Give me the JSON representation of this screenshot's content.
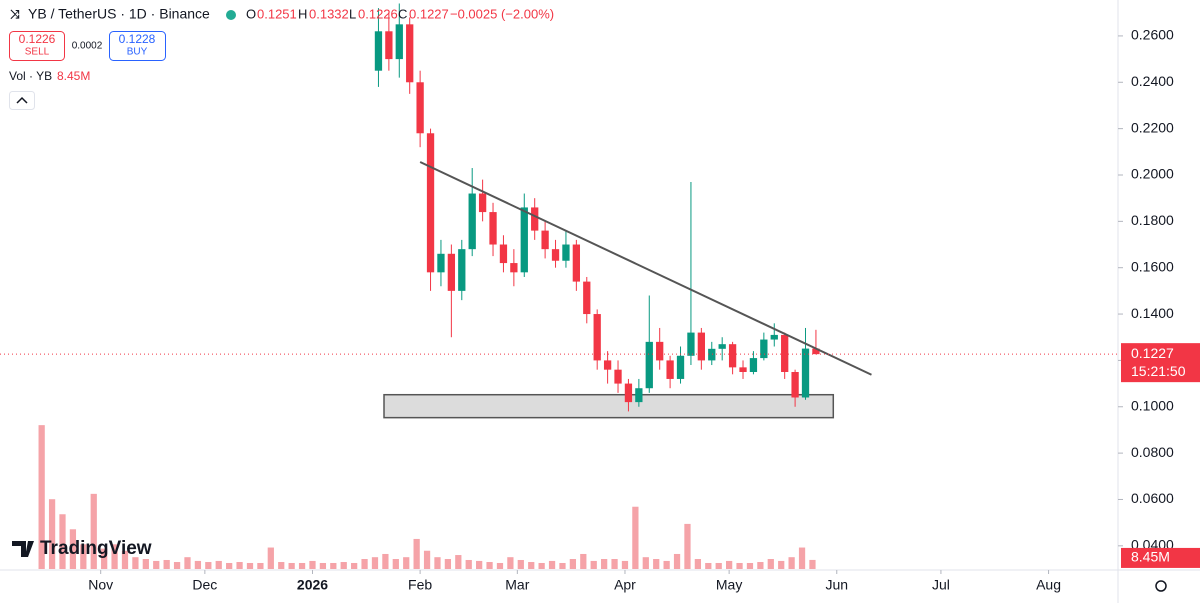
{
  "header": {
    "symbol": "YB / TetherUS · 1D · Binance",
    "o": "O",
    "h": "H",
    "l": "L",
    "c": "C",
    "change": "−0.0025 (−2.00%)",
    "sell": 0.1226,
    "sell_label": "SELL",
    "spread": 0.0002,
    "buy": 0.1228,
    "buy_label": "BUY",
    "vol_label": "Vol · YB",
    "countdown": "15:21:50",
    "logo": "TradingView"
  },
  "chart_data": {
    "type": "candlestick",
    "x": [
      111,
      114,
      117,
      120,
      123,
      126,
      129,
      132,
      135,
      138,
      141,
      144,
      147,
      150,
      153,
      156,
      159,
      162,
      165,
      168,
      171,
      174,
      177,
      180,
      183,
      186,
      189,
      192,
      195,
      198,
      201,
      204,
      207,
      210,
      213,
      216,
      219,
      222,
      225,
      228,
      231,
      234,
      237
    ],
    "open": [
      0.245,
      0.262,
      0.25,
      0.265,
      0.24,
      0.218,
      0.158,
      0.166,
      0.15,
      0.168,
      0.192,
      0.184,
      0.17,
      0.162,
      0.158,
      0.186,
      0.176,
      0.168,
      0.163,
      0.17,
      0.154,
      0.14,
      0.12,
      0.116,
      0.11,
      0.102,
      0.108,
      0.128,
      0.12,
      0.112,
      0.122,
      0.132,
      0.12,
      0.125,
      0.127,
      0.117,
      0.115,
      0.121,
      0.129,
      0.131,
      0.115,
      0.104,
      0.1251
    ],
    "high": [
      0.272,
      0.27,
      0.274,
      0.268,
      0.245,
      0.22,
      0.172,
      0.17,
      0.172,
      0.203,
      0.198,
      0.188,
      0.174,
      0.168,
      0.192,
      0.19,
      0.18,
      0.172,
      0.176,
      0.172,
      0.156,
      0.142,
      0.124,
      0.12,
      0.112,
      0.112,
      0.148,
      0.134,
      0.122,
      0.126,
      0.197,
      0.134,
      0.128,
      0.13,
      0.128,
      0.12,
      0.124,
      0.132,
      0.136,
      0.132,
      0.116,
      0.134,
      0.1332
    ],
    "low": [
      0.238,
      0.245,
      0.242,
      0.235,
      0.212,
      0.15,
      0.152,
      0.13,
      0.146,
      0.165,
      0.18,
      0.165,
      0.158,
      0.152,
      0.156,
      0.172,
      0.164,
      0.16,
      0.16,
      0.15,
      0.136,
      0.116,
      0.11,
      0.106,
      0.098,
      0.1,
      0.106,
      0.116,
      0.108,
      0.11,
      0.118,
      0.116,
      0.118,
      0.12,
      0.114,
      0.112,
      0.114,
      0.12,
      0.126,
      0.112,
      0.1,
      0.103,
      0.1226
    ],
    "close": [
      0.262,
      0.25,
      0.265,
      0.24,
      0.218,
      0.158,
      0.166,
      0.15,
      0.168,
      0.192,
      0.184,
      0.17,
      0.162,
      0.158,
      0.186,
      0.176,
      0.168,
      0.163,
      0.17,
      0.154,
      0.14,
      0.12,
      0.116,
      0.11,
      0.102,
      0.108,
      0.128,
      0.12,
      0.112,
      0.122,
      0.132,
      0.12,
      0.125,
      0.127,
      0.117,
      0.115,
      0.121,
      0.129,
      0.131,
      0.115,
      0.104,
      0.1251,
      0.1227
    ],
    "up_color": "#089981",
    "down_color": "#f23645",
    "xlim": [
      2,
      324
    ],
    "xticks": [
      {
        "value": 31,
        "label": "Nov"
      },
      {
        "value": 61,
        "label": "Dec"
      },
      {
        "value": 92,
        "label": "2026"
      },
      {
        "value": 123,
        "label": "Feb"
      },
      {
        "value": 151,
        "label": "Mar"
      },
      {
        "value": 182,
        "label": "Apr"
      },
      {
        "value": 212,
        "label": "May"
      },
      {
        "value": 243,
        "label": "Jun"
      },
      {
        "value": 273,
        "label": "Jul"
      },
      {
        "value": 304,
        "label": "Aug"
      }
    ],
    "ylim": [
      0.03,
      0.2755
    ],
    "yticks": [
      {
        "value": 0.26,
        "label": "0.2600"
      },
      {
        "value": 0.24,
        "label": "0.2400"
      },
      {
        "value": 0.22,
        "label": "0.2200"
      },
      {
        "value": 0.2,
        "label": "0.2000"
      },
      {
        "value": 0.18,
        "label": "0.1800"
      },
      {
        "value": 0.16,
        "label": "0.1600"
      },
      {
        "value": 0.14,
        "label": "0.1400"
      },
      {
        "value": 0.12,
        "label": "0.1200"
      },
      {
        "value": 0.1,
        "label": "0.1000"
      },
      {
        "value": 0.08,
        "label": "0.0800"
      },
      {
        "value": 0.06,
        "label": "0.0600"
      },
      {
        "value": 0.04,
        "label": "0.0400"
      }
    ],
    "volume": {
      "color": "#f5a3a8",
      "x": [
        14,
        17,
        20,
        23,
        26,
        29,
        32,
        35,
        38,
        41,
        44,
        47,
        50,
        53,
        56,
        59,
        62,
        65,
        68,
        71,
        74,
        77,
        80,
        83,
        86,
        89,
        92,
        95,
        98,
        101,
        104,
        107,
        110,
        113,
        116,
        119,
        122,
        125,
        128,
        131,
        134,
        137,
        140,
        143,
        146,
        149,
        152,
        155,
        158,
        161,
        164,
        167,
        170,
        173,
        176,
        179,
        182,
        185,
        188,
        191,
        194,
        197,
        200,
        203,
        206,
        209,
        212,
        215,
        218,
        221,
        224,
        227,
        230,
        233,
        236
      ],
      "values": [
        134000000.0,
        65000000.0,
        51000000.0,
        37000000.0,
        23000000.0,
        70000000.0,
        19000000.0,
        23000000.0,
        17000000.0,
        11000000.0,
        9300000.0,
        7500000.0,
        8400000.0,
        6500000.0,
        11000000.0,
        7500000.0,
        6500000.0,
        7500000.0,
        5600000.0,
        6500000.0,
        5600000.0,
        5600000.0,
        20000000.0,
        6500000.0,
        5600000.0,
        5600000.0,
        7500000.0,
        5600000.0,
        5600000.0,
        6500000.0,
        5600000.0,
        9300000.0,
        11000000.0,
        14000000.0,
        9300000.0,
        11000000.0,
        28000000.0,
        17000000.0,
        11000000.0,
        9300000.0,
        13000000.0,
        8400000.0,
        7500000.0,
        6500000.0,
        5600000.0,
        11000000.0,
        8400000.0,
        6500000.0,
        5600000.0,
        7500000.0,
        5600000.0,
        9300000.0,
        14000000.0,
        7500000.0,
        9300000.0,
        9300000.0,
        7500000.0,
        58000000.0,
        11000000.0,
        9300000.0,
        7500000.0,
        14000000.0,
        42000000.0,
        9300000.0,
        5600000.0,
        5600000.0,
        7500000.0,
        5600000.0,
        5600000.0,
        6500000.0,
        9300000.0,
        7500000.0,
        11000000.0,
        20000000.0,
        8450000.0
      ],
      "vlim": [
        0,
        530000000
      ],
      "current": {
        "value": 8450000,
        "label": "8.45M"
      }
    },
    "trendline": {
      "x": [
        123,
        253
      ],
      "y": [
        0.2056,
        0.1138
      ]
    },
    "zone": {
      "x": [
        112.6,
        242
      ],
      "y": [
        0.1052,
        0.0953
      ]
    }
  }
}
